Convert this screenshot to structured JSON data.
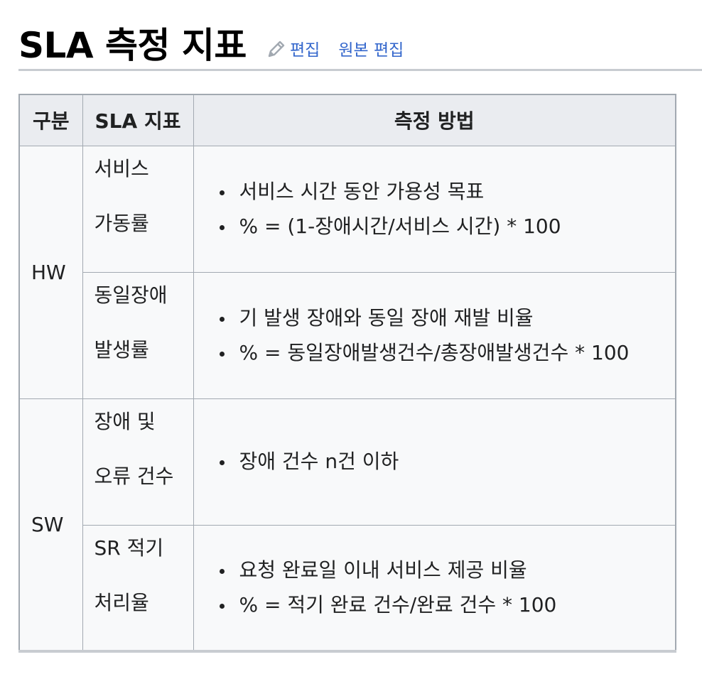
{
  "heading": {
    "title": "SLA 측정 지표",
    "edit_label": "편집",
    "edit_source_label": "원본 편집",
    "link_color": "#3366cc",
    "pencil_icon": "pencil-icon"
  },
  "table": {
    "headers": [
      "구분",
      "SLA 지표",
      "측정 방법"
    ],
    "groups": [
      {
        "category": "HW",
        "rows": [
          {
            "metric_lines": [
              "서비스",
              "가동률"
            ],
            "methods": [
              "서비스 시간 동안 가용성 목표",
              "% = (1-장애시간/서비스 시간) * 100"
            ]
          },
          {
            "metric_lines": [
              "동일장애",
              "발생률"
            ],
            "methods": [
              "기 발생 장애와 동일 장애 재발 비율",
              "% = 동일장애발생건수/총장애발생건수 * 100"
            ]
          }
        ]
      },
      {
        "category": "SW",
        "rows": [
          {
            "metric_lines": [
              "장애 및",
              "오류 건수"
            ],
            "methods": [
              "장애 건수 n건 이하"
            ]
          },
          {
            "metric_lines": [
              "SR 적기",
              "처리율"
            ],
            "methods": [
              "요청 완료일 이내 서비스 제공 비율",
              "% = 적기 완료 건수/완료 건수 * 100"
            ]
          }
        ]
      }
    ]
  }
}
